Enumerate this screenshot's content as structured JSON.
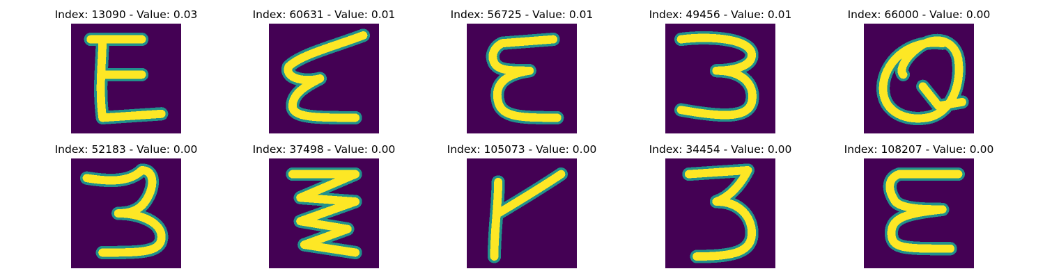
{
  "colors": {
    "background": "#440154",
    "stroke_edge": "#21918c",
    "stroke_core": "#fde725"
  },
  "panels": [
    {
      "title": "Index: 13090 - Value: 0.03"
    },
    {
      "title": "Index: 60631 - Value: 0.01"
    },
    {
      "title": "Index: 56725 - Value: 0.01"
    },
    {
      "title": "Index: 49456 - Value: 0.01"
    },
    {
      "title": "Index: 66000 - Value: 0.00"
    },
    {
      "title": "Index: 52183 - Value: 0.00"
    },
    {
      "title": "Index: 37498 - Value: 0.00"
    },
    {
      "title": "Index: 105073 - Value: 0.00"
    },
    {
      "title": "Index: 34454 - Value: 0.00"
    },
    {
      "title": "Index: 108207 - Value: 0.00"
    }
  ]
}
